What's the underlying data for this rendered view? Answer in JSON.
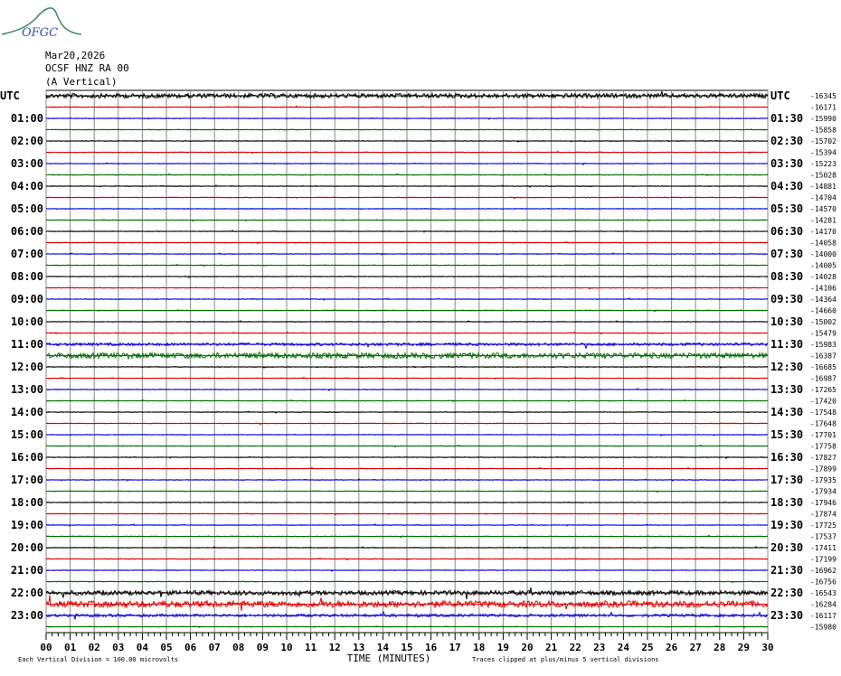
{
  "header": {
    "logo": "OFGC",
    "date": "Mar20,2026",
    "station": "OCSF HNZ RA 00",
    "component": "(A Vertical)"
  },
  "left_labels": [
    "UTC",
    "01:00",
    "02:00",
    "03:00",
    "04:00",
    "05:00",
    "06:00",
    "07:00",
    "08:00",
    "09:00",
    "10:00",
    "11:00",
    "12:00",
    "13:00",
    "14:00",
    "15:00",
    "16:00",
    "17:00",
    "18:00",
    "19:00",
    "20:00",
    "21:00",
    "22:00",
    "23:00"
  ],
  "right_labels": [
    "UTC",
    "01:30",
    "02:30",
    "03:30",
    "04:30",
    "05:30",
    "06:30",
    "07:30",
    "08:30",
    "09:30",
    "10:30",
    "11:30",
    "12:30",
    "13:30",
    "14:30",
    "15:30",
    "16:30",
    "17:30",
    "18:30",
    "19:30",
    "20:30",
    "21:30",
    "22:30",
    "23:30"
  ],
  "row_values": [
    "-16345",
    "-16171",
    "-15990",
    "-15858",
    "-15702",
    "-15394",
    "-15223",
    "-15028",
    "-14881",
    "-14704",
    "-14570",
    "-14281",
    "-14170",
    "-14058",
    "-14000",
    "-14005",
    "-14028",
    "-14106",
    "-14364",
    "-14660",
    "-15002",
    "-15479",
    "-15983",
    "-16387",
    "-16685",
    "-16987",
    "-17265",
    "-17420",
    "-17548",
    "-17648",
    "-17701",
    "-17758",
    "-17827",
    "-17899",
    "-17935",
    "-17934",
    "-17946",
    "-17874",
    "-17725",
    "-17537",
    "-17411",
    "-17199",
    "-16962",
    "-16756",
    "-16543",
    "-16284",
    "-16117",
    "-15980"
  ],
  "x_ticks": [
    "00",
    "01",
    "02",
    "03",
    "04",
    "05",
    "06",
    "07",
    "08",
    "09",
    "10",
    "11",
    "12",
    "13",
    "14",
    "15",
    "16",
    "17",
    "18",
    "19",
    "20",
    "21",
    "22",
    "23",
    "24",
    "25",
    "26",
    "27",
    "28",
    "29",
    "30"
  ],
  "x_axis_label": "TIME (MINUTES)",
  "footer_left": "Each Vertical Division =  100.00 microvolts",
  "footer_right": "Traces clipped at plus/minus 5 vertical divisions"
}
